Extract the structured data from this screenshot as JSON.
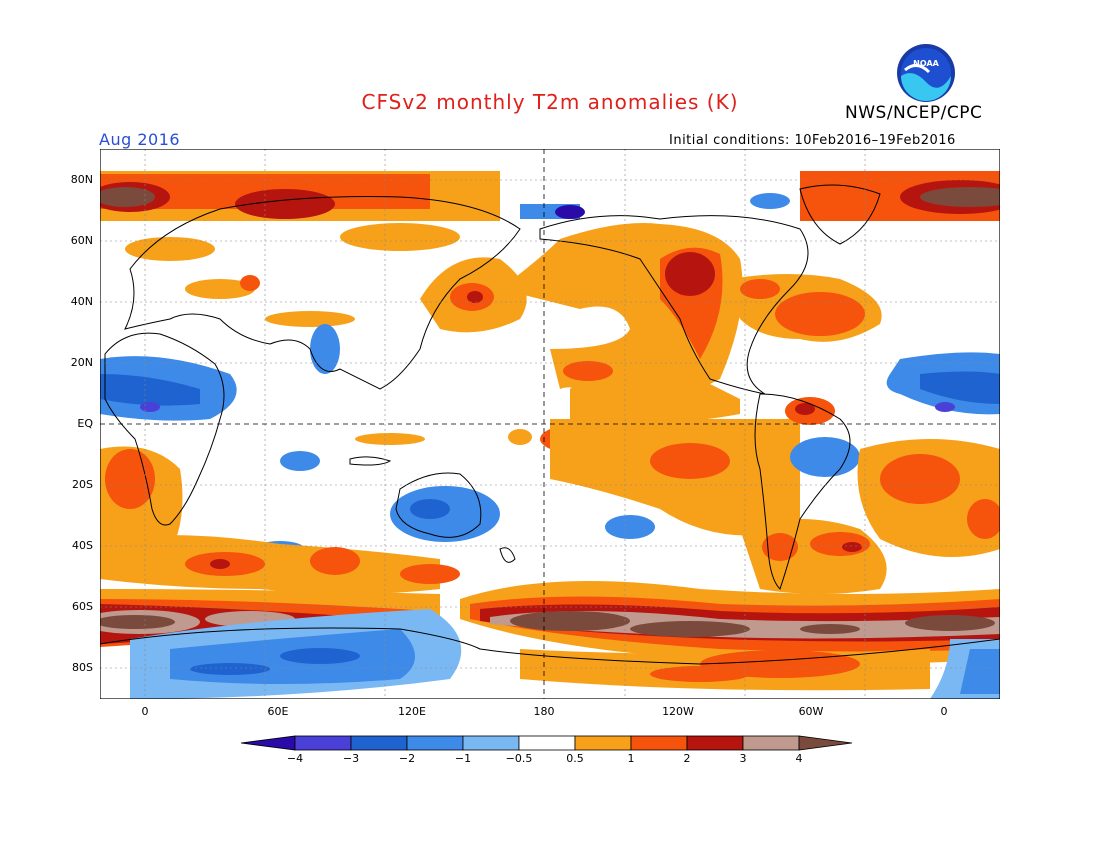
{
  "title": "CFSv2 monthly T2m anomalies (K)",
  "org": "NWS/NCEP/CPC",
  "logo_text": "NOAA",
  "month": "Aug 2016",
  "initial_conditions": "Initial conditions: 10Feb2016–19Feb2016",
  "lat_ticks": [
    "80N",
    "60N",
    "40N",
    "20N",
    "EQ",
    "20S",
    "40S",
    "60S",
    "80S"
  ],
  "lon_ticks": [
    "0",
    "60E",
    "120E",
    "180",
    "120W",
    "60W",
    "0"
  ],
  "colorbar": {
    "labels": [
      "−4",
      "−3",
      "−2",
      "−1",
      "−0.5",
      "0.5",
      "1",
      "2",
      "3",
      "4"
    ],
    "colors": [
      "#2a0aa8",
      "#4a3fd6",
      "#1f63d0",
      "#3e8ae8",
      "#7ab8f3",
      "#ffffff",
      "#f7a11a",
      "#f6530c",
      "#b5150e",
      "#c09a8e",
      "#7a4a3c"
    ]
  }
}
